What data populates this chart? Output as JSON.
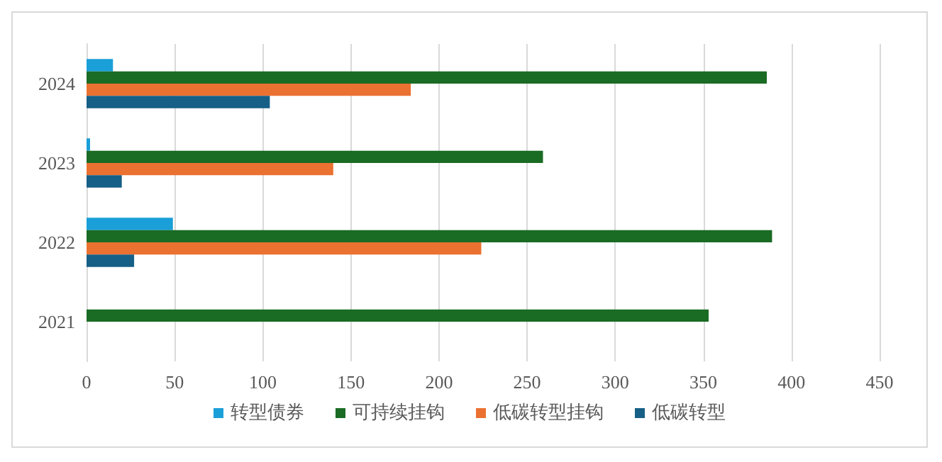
{
  "chart_data": {
    "type": "bar",
    "orientation": "horizontal",
    "categories": [
      "2024",
      "2023",
      "2022",
      "2021"
    ],
    "series": [
      {
        "name": "转型债券",
        "color": "#1a9fd8",
        "values": [
          15,
          2,
          49,
          null
        ]
      },
      {
        "name": "可持续挂钩",
        "color": "#1a6b24",
        "values": [
          386,
          259,
          389,
          353
        ]
      },
      {
        "name": "低碳转型挂钩",
        "color": "#eb7131",
        "values": [
          184,
          140,
          224,
          null
        ]
      },
      {
        "name": "低碳转型",
        "color": "#165f86",
        "values": [
          104,
          20,
          27,
          null
        ]
      }
    ],
    "xlim": [
      0,
      450
    ],
    "xticks": [
      0,
      50,
      100,
      150,
      200,
      250,
      300,
      350,
      400,
      450
    ],
    "grid": "x",
    "legend": "bottom"
  }
}
